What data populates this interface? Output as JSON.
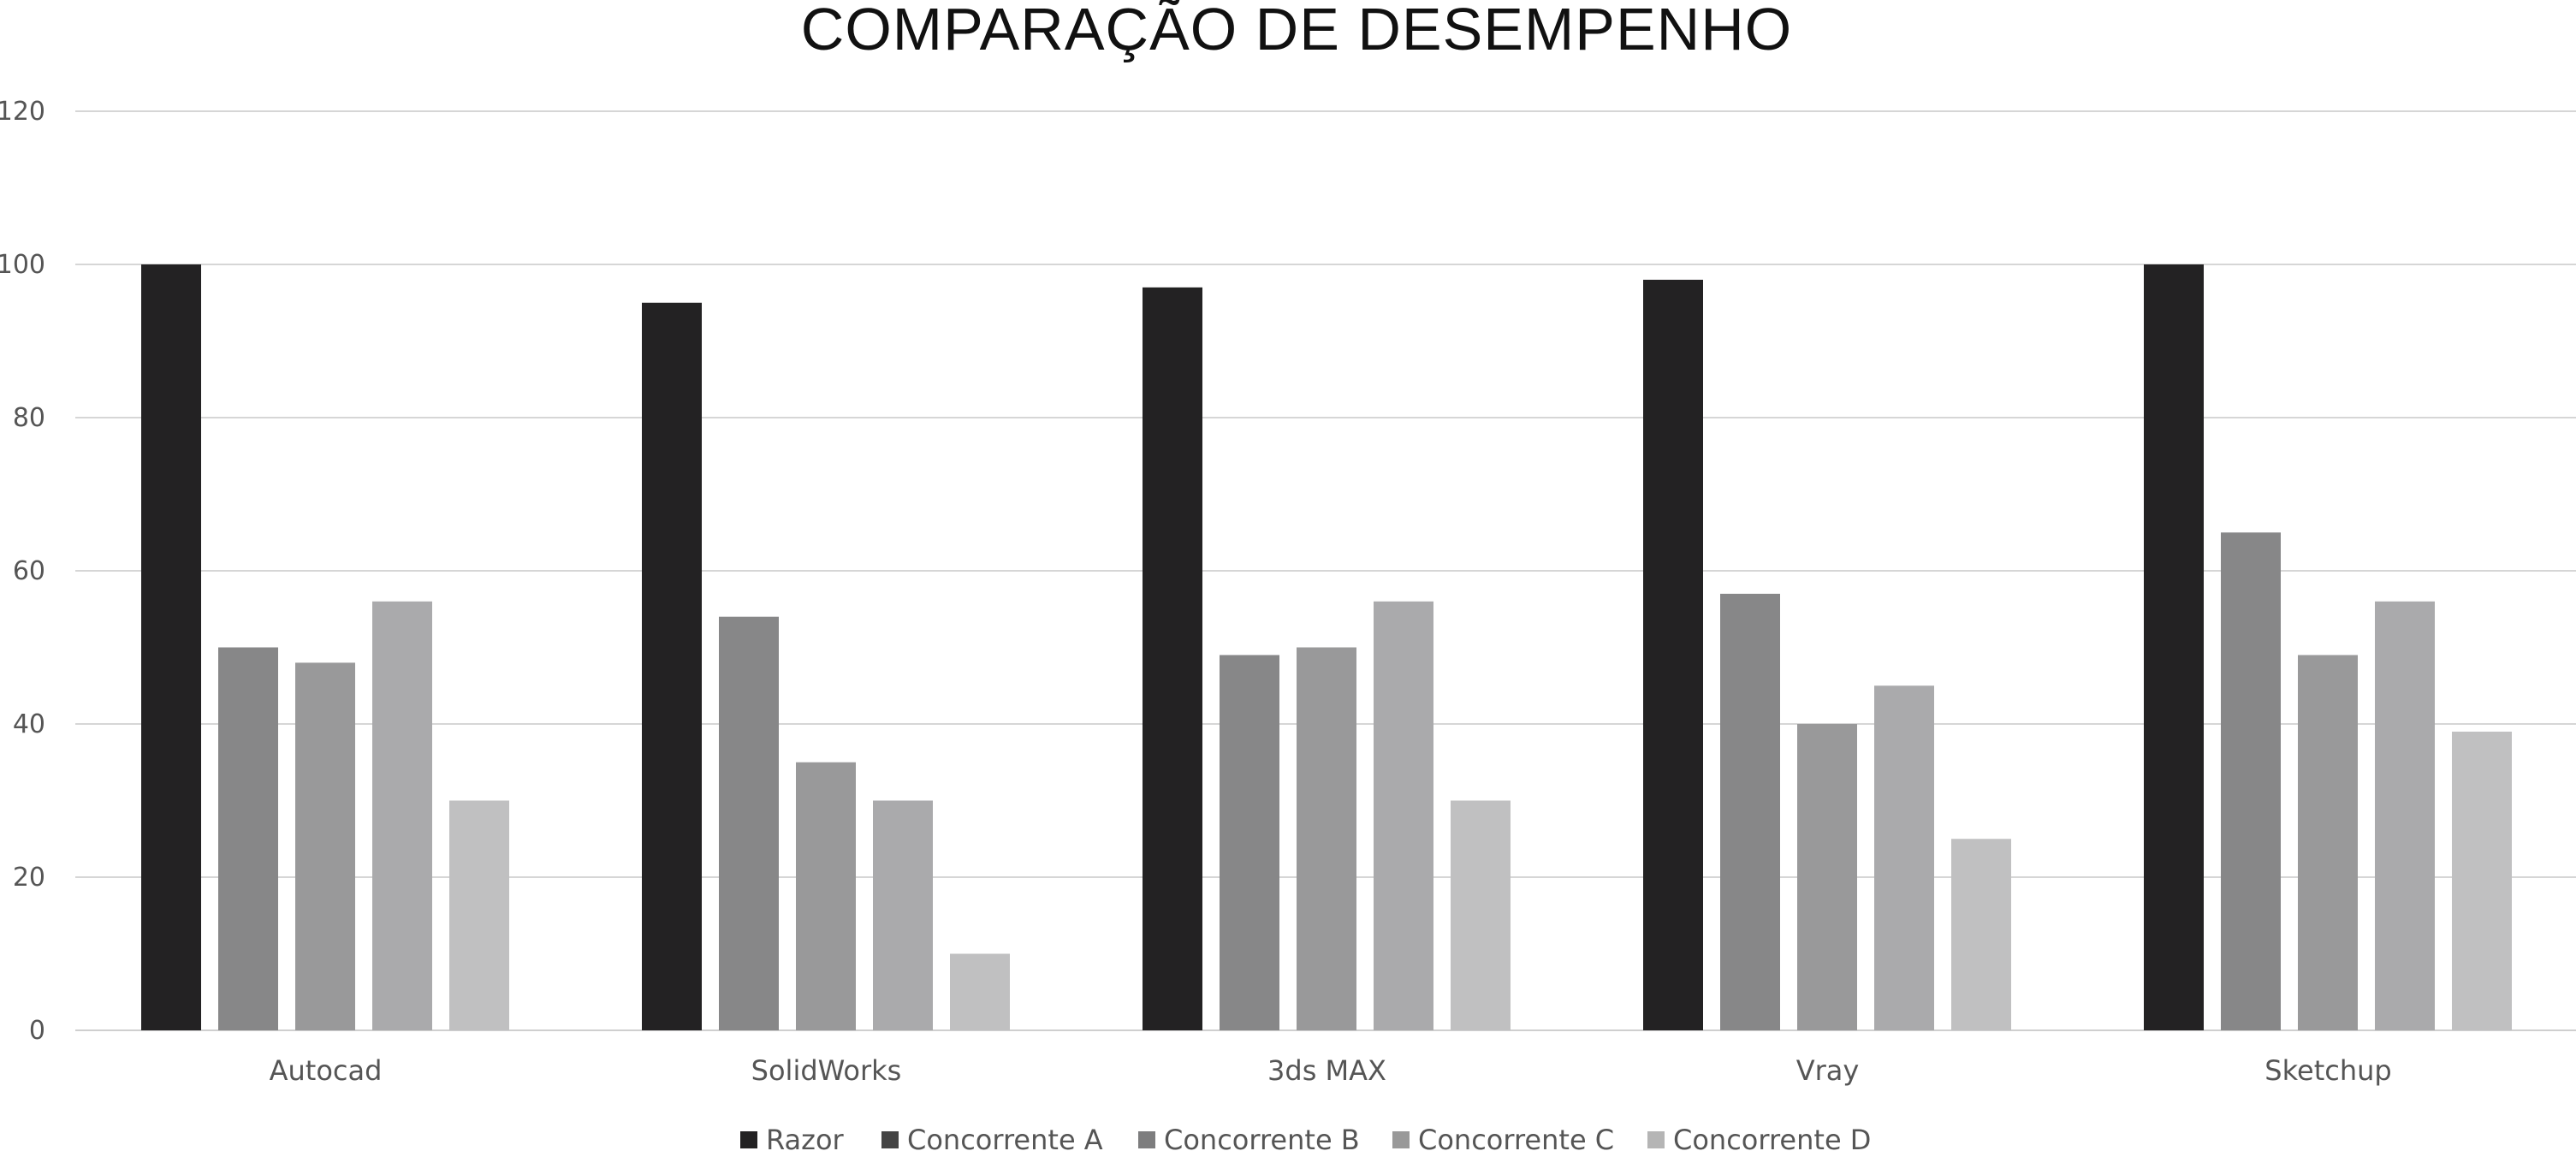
{
  "chart_data": {
    "type": "bar",
    "title": "COMPARAÇÃO DE DESEMPENHO",
    "xlabel": "",
    "ylabel": "",
    "ylim": [
      0,
      120
    ],
    "yticks": [
      0,
      20,
      40,
      60,
      80,
      100,
      120
    ],
    "grid": true,
    "legend_position": "bottom",
    "categories": [
      "Autocad",
      "SolidWorks",
      "3ds MAX",
      "Vray",
      "Sketchup"
    ],
    "series": [
      {
        "name": "Razor",
        "color": "#232223",
        "values": [
          100,
          95,
          97,
          98,
          100
        ]
      },
      {
        "name": "Concorrente A",
        "color": "#878788",
        "values": [
          50,
          54,
          49,
          57,
          65
        ]
      },
      {
        "name": "Concorrente B",
        "color": "#99999a",
        "values": [
          48,
          35,
          50,
          40,
          49
        ]
      },
      {
        "name": "Concorrente C",
        "color": "#aaaaac",
        "values": [
          56,
          30,
          56,
          45,
          56
        ]
      },
      {
        "name": "Concorrente D",
        "color": "#c0c0c1",
        "values": [
          30,
          10,
          30,
          25,
          39
        ]
      }
    ],
    "legend_swatch_colors": [
      "#232223",
      "#444444",
      "#7d7d7e",
      "#999999",
      "#b5b5b5"
    ]
  }
}
